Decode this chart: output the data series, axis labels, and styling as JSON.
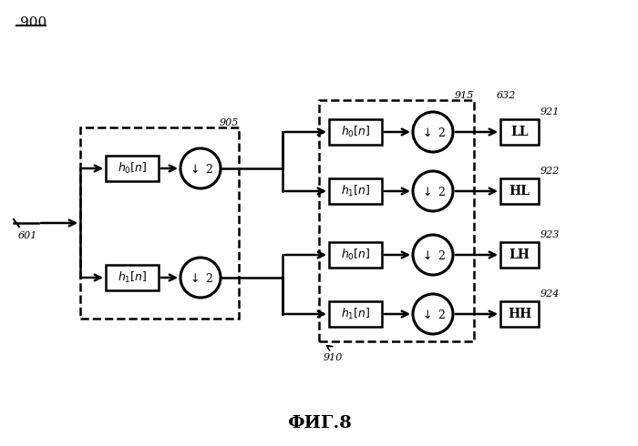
{
  "title": "ФИГ.8",
  "fig_label": "900",
  "background_color": "#ffffff",
  "box905_label": "905",
  "box910_label": "910",
  "box915_label": "915",
  "box632_label": "632",
  "input_label": "601",
  "output_labels": [
    "921",
    "922",
    "923",
    "924"
  ],
  "output_boxes": [
    "LL",
    "HL",
    "LH",
    "HH"
  ],
  "filter_boxes_left": [
    "h₀[n]",
    "h₁[n]"
  ],
  "filter_boxes_right": [
    "h₀[n]",
    "h₁[n]",
    "h₀[n]",
    "h₁[n]"
  ],
  "downsample_label": "↓ 2"
}
